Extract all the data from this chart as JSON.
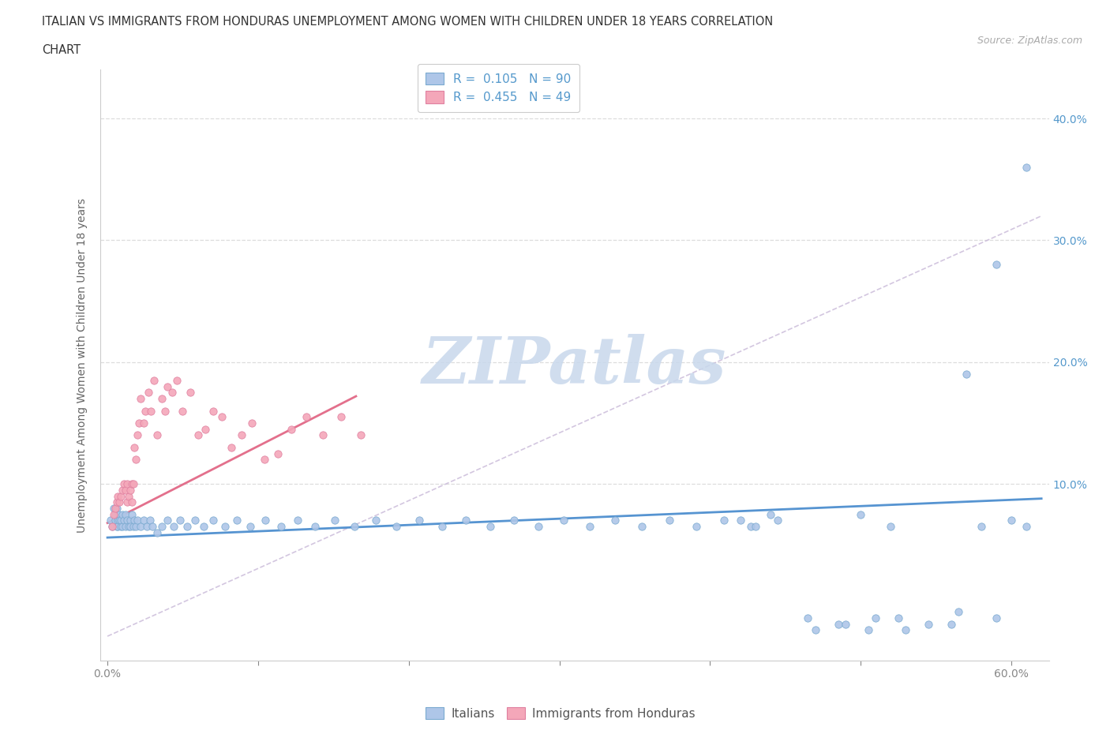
{
  "title_line1": "ITALIAN VS IMMIGRANTS FROM HONDURAS UNEMPLOYMENT AMONG WOMEN WITH CHILDREN UNDER 18 YEARS CORRELATION",
  "title_line2": "CHART",
  "source": "Source: ZipAtlas.com",
  "ylabel": "Unemployment Among Women with Children Under 18 years",
  "xlim": [
    -0.005,
    0.625
  ],
  "ylim": [
    -0.045,
    0.44
  ],
  "italian_color": "#aec6e8",
  "italian_edge_color": "#7aaad0",
  "honduras_color": "#f4a7b9",
  "honduras_edge_color": "#e080a0",
  "italian_R": 0.105,
  "italian_N": 90,
  "honduras_R": 0.455,
  "honduras_N": 49,
  "watermark": "ZIPatlas",
  "watermark_color": "#c8d8ec",
  "trend_italian_color": "#4488cc",
  "trend_honduras_color": "#e06080",
  "dashed_line_color": "#c8b8d8",
  "legend_label_italian": "Italians",
  "legend_label_honduras": "Immigrants from Honduras",
  "background_color": "#ffffff",
  "text_color": "#333333",
  "axis_color": "#5599cc",
  "grid_color": "#dddddd",
  "yticks": [
    0.0,
    0.1,
    0.2,
    0.3,
    0.4
  ],
  "ytick_right_labels": [
    "",
    "10.0%",
    "20.0%",
    "30.0%",
    "40.0%"
  ],
  "xticks": [
    0.0,
    0.1,
    0.2,
    0.3,
    0.4,
    0.5,
    0.6
  ],
  "xtick_labels": [
    "0.0%",
    "",
    "",
    "",
    "",
    "",
    "60.0%"
  ],
  "italian_x": [
    0.002,
    0.003,
    0.004,
    0.005,
    0.005,
    0.006,
    0.006,
    0.007,
    0.007,
    0.008,
    0.008,
    0.009,
    0.009,
    0.01,
    0.01,
    0.011,
    0.012,
    0.012,
    0.013,
    0.014,
    0.015,
    0.015,
    0.016,
    0.017,
    0.018,
    0.019,
    0.02,
    0.022,
    0.024,
    0.026,
    0.028,
    0.03,
    0.033,
    0.036,
    0.04,
    0.044,
    0.048,
    0.053,
    0.058,
    0.064,
    0.07,
    0.078,
    0.086,
    0.095,
    0.105,
    0.115,
    0.126,
    0.138,
    0.151,
    0.164,
    0.178,
    0.192,
    0.207,
    0.222,
    0.238,
    0.254,
    0.27,
    0.286,
    0.303,
    0.32,
    0.337,
    0.355,
    0.373,
    0.391,
    0.409,
    0.427,
    0.445,
    0.465,
    0.485,
    0.505,
    0.525,
    0.545,
    0.565,
    0.47,
    0.49,
    0.51,
    0.53,
    0.56,
    0.59,
    0.44,
    0.43,
    0.42,
    0.61,
    0.59,
    0.57,
    0.58,
    0.6,
    0.61,
    0.5,
    0.52
  ],
  "italian_y": [
    0.07,
    0.065,
    0.08,
    0.07,
    0.075,
    0.065,
    0.08,
    0.07,
    0.065,
    0.075,
    0.07,
    0.065,
    0.07,
    0.075,
    0.065,
    0.07,
    0.065,
    0.075,
    0.07,
    0.065,
    0.07,
    0.065,
    0.075,
    0.065,
    0.07,
    0.065,
    0.07,
    0.065,
    0.07,
    0.065,
    0.07,
    0.065,
    0.06,
    0.065,
    0.07,
    0.065,
    0.07,
    0.065,
    0.07,
    0.065,
    0.07,
    0.065,
    0.07,
    0.065,
    0.07,
    0.065,
    0.07,
    0.065,
    0.07,
    0.065,
    0.07,
    0.065,
    0.07,
    0.065,
    0.07,
    0.065,
    0.07,
    0.065,
    0.07,
    0.065,
    0.07,
    0.065,
    0.07,
    0.065,
    0.07,
    0.065,
    0.07,
    -0.01,
    -0.015,
    -0.02,
    -0.01,
    -0.015,
    -0.005,
    -0.02,
    -0.015,
    -0.01,
    -0.02,
    -0.015,
    -0.01,
    0.075,
    0.065,
    0.07,
    0.36,
    0.28,
    0.19,
    0.065,
    0.07,
    0.065,
    0.075,
    0.065
  ],
  "honduras_x": [
    0.003,
    0.004,
    0.005,
    0.006,
    0.007,
    0.008,
    0.009,
    0.01,
    0.011,
    0.012,
    0.013,
    0.013,
    0.014,
    0.015,
    0.016,
    0.016,
    0.017,
    0.018,
    0.019,
    0.02,
    0.021,
    0.022,
    0.024,
    0.025,
    0.027,
    0.029,
    0.031,
    0.033,
    0.036,
    0.038,
    0.04,
    0.043,
    0.046,
    0.05,
    0.055,
    0.06,
    0.065,
    0.07,
    0.076,
    0.082,
    0.089,
    0.096,
    0.104,
    0.113,
    0.122,
    0.132,
    0.143,
    0.155,
    0.168
  ],
  "honduras_y": [
    0.065,
    0.075,
    0.08,
    0.085,
    0.09,
    0.085,
    0.09,
    0.095,
    0.1,
    0.095,
    0.085,
    0.1,
    0.09,
    0.095,
    0.1,
    0.085,
    0.1,
    0.13,
    0.12,
    0.14,
    0.15,
    0.17,
    0.15,
    0.16,
    0.175,
    0.16,
    0.185,
    0.14,
    0.17,
    0.16,
    0.18,
    0.175,
    0.185,
    0.16,
    0.175,
    0.14,
    0.145,
    0.16,
    0.155,
    0.13,
    0.14,
    0.15,
    0.12,
    0.125,
    0.145,
    0.155,
    0.14,
    0.155,
    0.14
  ],
  "it_trend_x0": 0.0,
  "it_trend_x1": 0.62,
  "it_trend_y0": 0.056,
  "it_trend_y1": 0.088,
  "hd_trend_x0": 0.0,
  "hd_trend_x1": 0.165,
  "hd_trend_y0": 0.068,
  "hd_trend_y1": 0.172,
  "dash_trend_x0": 0.0,
  "dash_trend_x1": 0.62,
  "dash_trend_y0": -0.025,
  "dash_trend_y1": 0.32
}
